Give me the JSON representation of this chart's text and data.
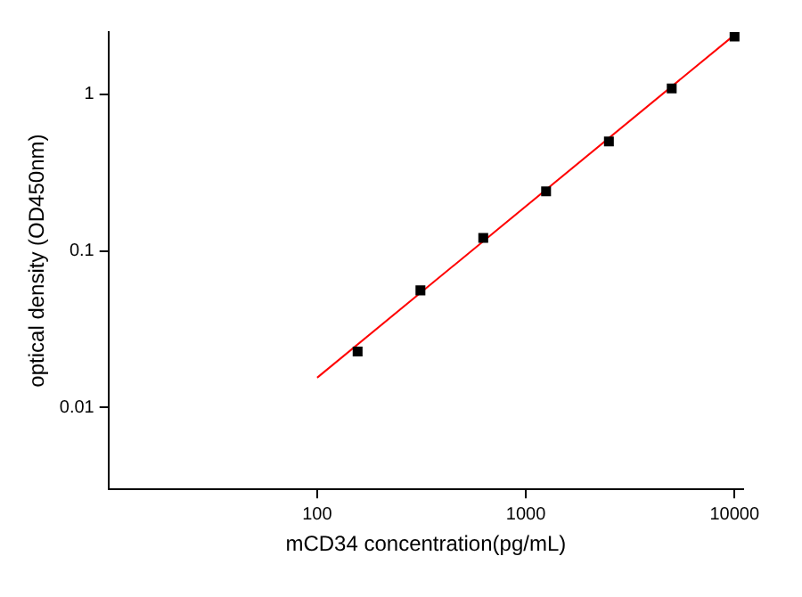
{
  "chart_data": {
    "type": "scatter",
    "xlabel": "mCD34 concentration(pg/mL)",
    "ylabel": "optical density (OD450nm)",
    "log": "xy",
    "xlim": [
      10,
      11000
    ],
    "ylim": [
      0.003,
      2.5
    ],
    "xticks": [
      100,
      1000,
      10000
    ],
    "yticks": [
      0.01,
      0.1,
      1
    ],
    "grid": false,
    "legend": false,
    "marker": "square",
    "series": [
      {
        "type": "scatter",
        "color": "#000000",
        "x": [
          156.25,
          312.5,
          625,
          1250,
          2500,
          5000,
          10000
        ],
        "values": [
          0.0228,
          0.056,
          0.121,
          0.24,
          0.5,
          1.09,
          2.34
        ]
      },
      {
        "type": "line",
        "color": "#ff0000",
        "marker": "none",
        "line_style": "solid",
        "x": [
          100,
          10000
        ],
        "values": [
          0.0155,
          2.4
        ]
      }
    ]
  }
}
